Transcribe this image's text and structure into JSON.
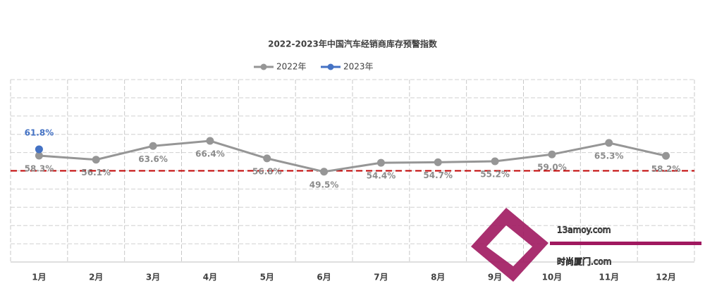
{
  "chart_data": {
    "type": "line",
    "title": "2022-2023年中国汽车经销商库存预警指数",
    "categories": [
      "1月",
      "2月",
      "3月",
      "4月",
      "5月",
      "6月",
      "7月",
      "8月",
      "9月",
      "10月",
      "11月",
      "12月"
    ],
    "series": [
      {
        "name": "2022年",
        "color": "#969696",
        "values": [
          58.3,
          56.1,
          63.6,
          66.4,
          56.8,
          49.5,
          54.4,
          54.7,
          55.2,
          59.0,
          65.3,
          58.2
        ],
        "value_labels": [
          "58.3%",
          "56.1%",
          "63.6%",
          "66.4%",
          "56.8%",
          "49.5%",
          "54.4%",
          "54.7%",
          "55.2%",
          "59.0%",
          "65.3%",
          "58.2%"
        ]
      },
      {
        "name": "2023年",
        "color": "#4472c4",
        "values": [
          61.8,
          null,
          null,
          null,
          null,
          null,
          null,
          null,
          null,
          null,
          null,
          null
        ],
        "value_labels": [
          "61.8%",
          null,
          null,
          null,
          null,
          null,
          null,
          null,
          null,
          null,
          null,
          null
        ]
      }
    ],
    "ylim": [
      0,
      100
    ],
    "yticks": [
      0,
      10,
      20,
      30,
      40,
      50,
      60,
      70,
      80,
      90,
      100
    ],
    "grid": true,
    "threshold": {
      "value": 50,
      "color": "#c00000"
    },
    "watermark": [
      "13amoy.com",
      "时尚厦门.com"
    ]
  }
}
